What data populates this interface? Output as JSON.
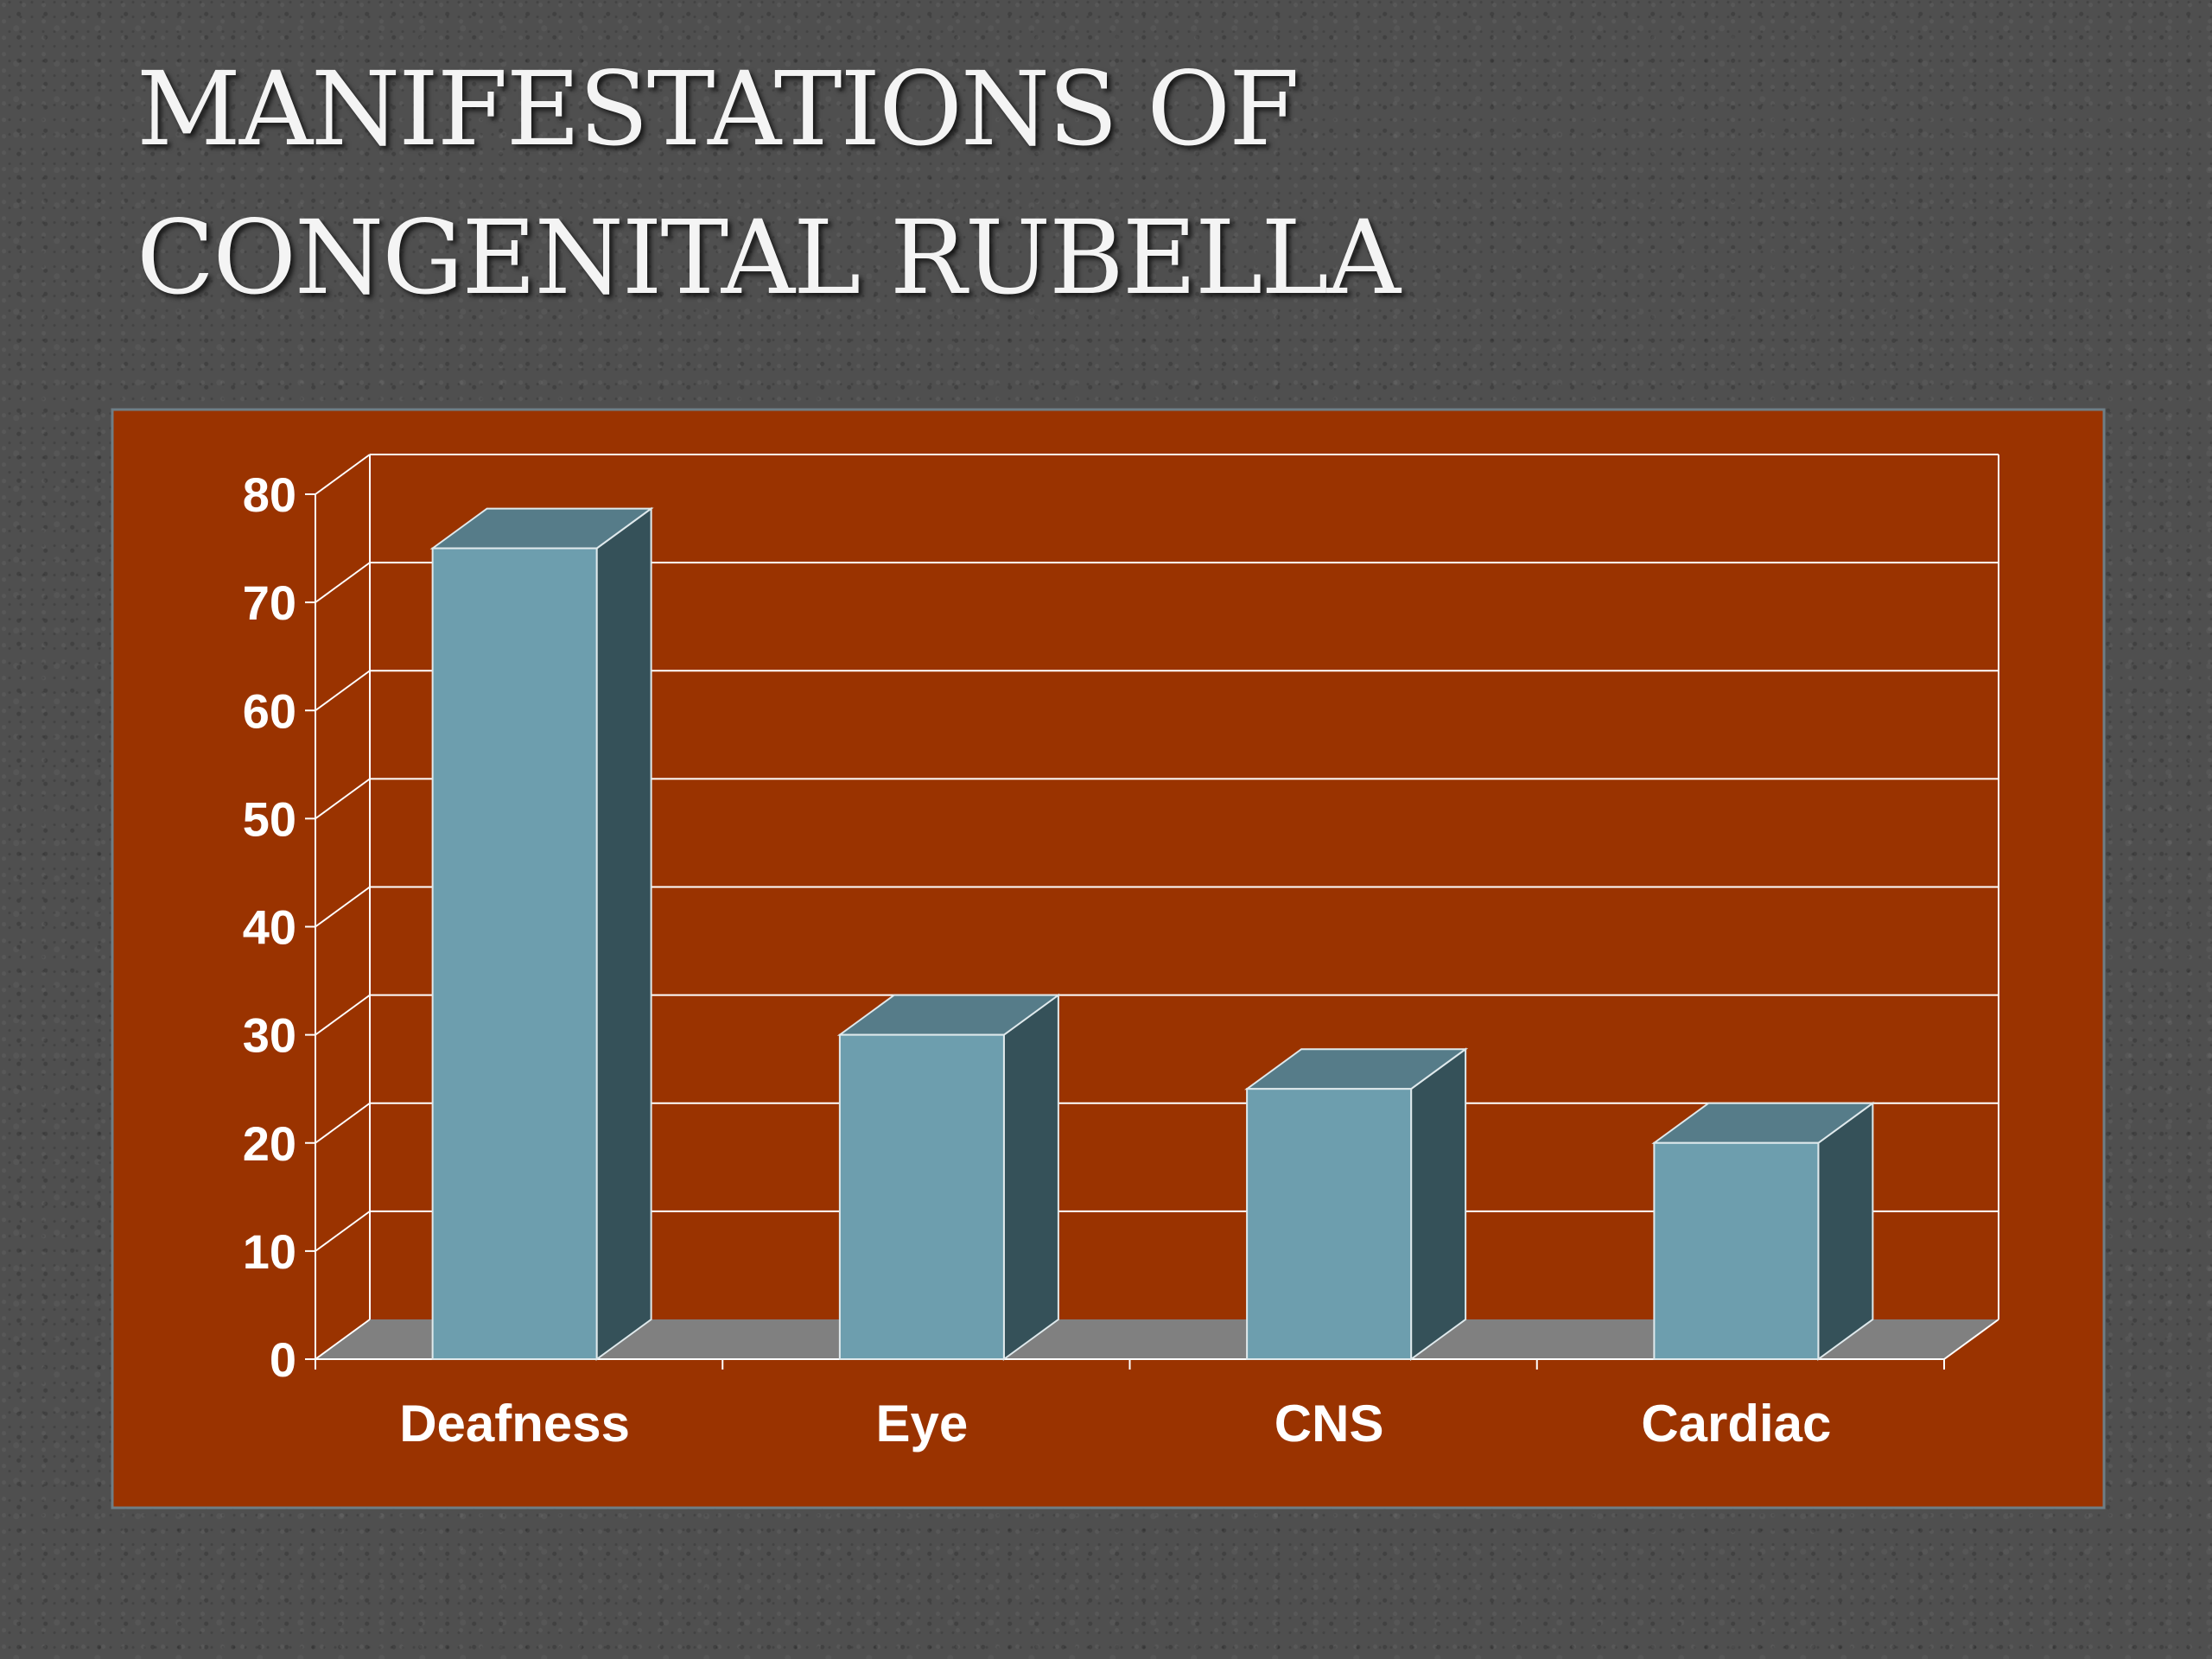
{
  "slide": {
    "title_line1": "MANIFESTATIONS OF",
    "title_line2": "CONGENITAL RUBELLA"
  },
  "colors": {
    "background": "#4f4f4f",
    "plot_background": "#9a3300",
    "bar_front": "#6d9eae",
    "bar_top": "#567c89",
    "bar_side": "#355159",
    "floor": "#808080",
    "gridline": "#ffffff"
  },
  "chart_data": {
    "type": "bar",
    "categories": [
      "Deafness",
      "Eye",
      "CNS",
      "Cardiac"
    ],
    "values": [
      75,
      30,
      25,
      20
    ],
    "title": "",
    "xlabel": "",
    "ylabel": "",
    "ylim": [
      0,
      80
    ],
    "yticks": [
      0,
      10,
      20,
      30,
      40,
      50,
      60,
      70,
      80
    ],
    "grid": true,
    "legend": "none",
    "style": "3d-column"
  }
}
